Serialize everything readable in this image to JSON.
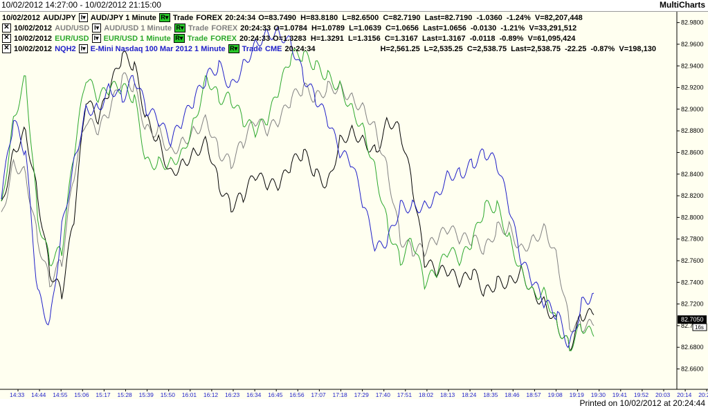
{
  "header": {
    "range_label": "10/02/2012 14:27:00 - 10/02/2012 21:15:00",
    "brand": "MultiCharts"
  },
  "legend": [
    {
      "date": "10/02/2012",
      "symbol": "AUD/JPY",
      "desc": "AUD/JPY 1 Minute",
      "trade": "Trade",
      "exch": "FOREX",
      "time": "20:24:34",
      "stats": "O=83.7490  H=83.8180  L=82.6500  C=82.7190  Last=82.7190  -1.0360  -1.24%  V=82,207,448",
      "color": "#000000",
      "has_x": false
    },
    {
      "date": "10/02/2012",
      "symbol": "AUD/USD",
      "desc": "AUD/USD 1 Minute",
      "trade": "Trade",
      "exch": "FOREX",
      "time": "20:24:33",
      "stats": "O=1.0784  H=1.0789  L=1.0639  C=1.0656  Last=1.0656  -0.0130  -1.21%  V=33,291,512",
      "color": "#808080",
      "has_x": true
    },
    {
      "date": "10/02/2012",
      "symbol": "EUR/USD",
      "desc": "EUR/USD 1 Minute",
      "trade": "Trade",
      "exch": "FOREX",
      "time": "20:24:33",
      "stats": "O=1.3283  H=1.3291  L=1.3156  C=1.3167  Last=1.3167  -0.0118  -0.89%  V=61,095,424",
      "color": "#2ca82c",
      "has_x": true
    },
    {
      "date": "10/02/2012",
      "symbol": "NQH2",
      "desc": "E-Mini Nasdaq 100 Mar 2012 1 Minute",
      "trade": "Trade",
      "exch": "CME",
      "time": "20:24:34",
      "stats": "H=2,561.25  L=2,535.25  C=2,538.75  Last=2,538.75  -22.25  -0.87%  V=198,130",
      "color": "#1e1ec8",
      "has_x": true
    }
  ],
  "footer": {
    "printed": "Printed on 10/02/2012 at 20:24:44"
  },
  "price_marker": {
    "value": "82.7050",
    "sub": "16s"
  },
  "chart_data": {
    "type": "line",
    "ylim": [
      82.645,
      82.99
    ],
    "yticks": [
      "82.9800",
      "82.9600",
      "82.9400",
      "82.9200",
      "82.9000",
      "82.8800",
      "82.8600",
      "82.8400",
      "82.8200",
      "82.8000",
      "82.7800",
      "82.7600",
      "82.7400",
      "82.7200",
      "82.7000",
      "82.6800",
      "82.6600"
    ],
    "ytick_values": [
      82.98,
      82.96,
      82.94,
      82.92,
      82.9,
      82.88,
      82.86,
      82.84,
      82.82,
      82.8,
      82.78,
      82.76,
      82.74,
      82.72,
      82.7,
      82.68,
      82.66
    ],
    "xticks": [
      "14:33",
      "14:44",
      "14:55",
      "15:06",
      "15:17",
      "15:28",
      "15:39",
      "15:50",
      "16:01",
      "16:12",
      "16:23",
      "16:34",
      "16:45",
      "16:56",
      "17:07",
      "17:18",
      "17:29",
      "17:40",
      "17:51",
      "18:02",
      "18:13",
      "18:24",
      "18:35",
      "18:46",
      "18:57",
      "19:08",
      "19:19",
      "19:30",
      "19:41",
      "19:52",
      "20:03",
      "20:14",
      "20:25",
      "20:36",
      "20:47",
      "20:58"
    ],
    "x_time_index": [
      0,
      1,
      2,
      3,
      4,
      5,
      6,
      7,
      8,
      9,
      10,
      11,
      12,
      13,
      14,
      15,
      16,
      17,
      18,
      19,
      20,
      21,
      22,
      23,
      24,
      25,
      26,
      27,
      28,
      29,
      30,
      31,
      32,
      33,
      34,
      35
    ],
    "series": [
      {
        "name": "AUD/JPY",
        "color": "#000000",
        "values": [
          82.81,
          82.86,
          82.88,
          82.82,
          82.75,
          82.73,
          82.8,
          82.91,
          82.89,
          82.92,
          82.95,
          82.94,
          82.89,
          82.87,
          82.84,
          82.85,
          82.86,
          82.87,
          82.83,
          82.81,
          82.82,
          82.84,
          82.83,
          82.83,
          82.85,
          82.86,
          82.84,
          82.83,
          82.87,
          82.88,
          82.87,
          82.86,
          82.89,
          82.88,
          82.83,
          82.76,
          82.75,
          82.75,
          82.74,
          82.75,
          82.73,
          82.74,
          82.74,
          82.75,
          82.73,
          82.72,
          82.7,
          82.68,
          82.71,
          82.71
        ]
      },
      {
        "name": "AUD/USD",
        "color": "#808080",
        "values": [
          82.8,
          82.85,
          82.84,
          82.78,
          82.74,
          82.76,
          82.84,
          82.89,
          82.88,
          82.9,
          82.93,
          82.92,
          82.88,
          82.88,
          82.86,
          82.87,
          82.88,
          82.89,
          82.86,
          82.85,
          82.87,
          82.89,
          82.88,
          82.89,
          82.91,
          82.92,
          82.91,
          82.92,
          82.92,
          82.91,
          82.9,
          82.88,
          82.84,
          82.78,
          82.77,
          82.77,
          82.78,
          82.79,
          82.78,
          82.78,
          82.77,
          82.79,
          82.79,
          82.77,
          82.78,
          82.79,
          82.76,
          82.7,
          82.7,
          82.7
        ]
      },
      {
        "name": "EUR/USD",
        "color": "#2ca82c",
        "values": [
          82.81,
          82.89,
          82.93,
          82.8,
          82.76,
          82.77,
          82.86,
          82.93,
          82.91,
          82.92,
          82.92,
          82.91,
          82.85,
          82.85,
          82.85,
          82.86,
          82.89,
          82.93,
          82.91,
          82.91,
          82.89,
          82.88,
          82.89,
          82.92,
          82.95,
          82.95,
          82.94,
          82.93,
          82.92,
          82.9,
          82.88,
          82.84,
          82.79,
          82.76,
          82.78,
          82.74,
          82.75,
          82.77,
          82.76,
          82.78,
          82.81,
          82.81,
          82.78,
          82.75,
          82.73,
          82.73,
          82.7,
          82.68,
          82.7,
          82.69
        ]
      },
      {
        "name": "NQH2",
        "color": "#1e1ec8",
        "values": [
          82.82,
          82.89,
          82.86,
          82.73,
          82.7,
          82.79,
          82.85,
          82.9,
          82.9,
          82.92,
          82.91,
          82.93,
          82.9,
          82.89,
          82.87,
          82.89,
          82.91,
          82.93,
          82.94,
          82.92,
          82.94,
          82.96,
          82.97,
          82.97,
          82.96,
          82.93,
          82.91,
          82.89,
          82.86,
          82.85,
          82.81,
          82.77,
          82.78,
          82.81,
          82.81,
          82.81,
          82.82,
          82.84,
          82.84,
          82.85,
          82.86,
          82.85,
          82.81,
          82.76,
          82.74,
          82.72,
          82.71,
          82.68,
          82.72,
          82.73
        ]
      }
    ]
  }
}
